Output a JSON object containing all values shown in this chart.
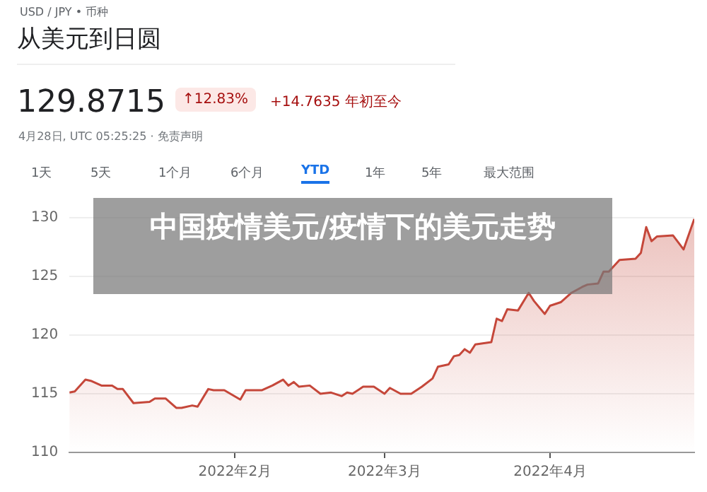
{
  "chart_data": {
    "type": "area",
    "title": "从美元到日圆",
    "subtitle": "USD / JPY • 币种",
    "annotations": [
      "129.8715",
      "↑12.83%",
      "+14.7635 年初至今",
      "4月28日, UTC 05:25:25 · 免责声明",
      "1天",
      "5天",
      "1个月",
      "6个月",
      "YTD",
      "1年",
      "5年",
      "最大范围",
      "中国疫情美元/疫情下的美元走势"
    ],
    "x": [
      "2022-01-01",
      "2022-01-02",
      "2022-01-04",
      "2022-01-05",
      "2022-01-07",
      "2022-01-09",
      "2022-01-10",
      "2022-01-11",
      "2022-01-13",
      "2022-01-16",
      "2022-01-17",
      "2022-01-19",
      "2022-01-21",
      "2022-01-22",
      "2022-01-24",
      "2022-01-25",
      "2022-01-27",
      "2022-01-28",
      "2022-01-30",
      "2022-02-02",
      "2022-02-03",
      "2022-02-06",
      "2022-02-08",
      "2022-02-10",
      "2022-02-11",
      "2022-02-12",
      "2022-02-13",
      "2022-02-15",
      "2022-02-17",
      "2022-02-19",
      "2022-02-21",
      "2022-02-22",
      "2022-02-23",
      "2022-02-25",
      "2022-02-27",
      "2022-03-01",
      "2022-03-02",
      "2022-03-04",
      "2022-03-06",
      "2022-03-08",
      "2022-03-10",
      "2022-03-11",
      "2022-03-13",
      "2022-03-14",
      "2022-03-15",
      "2022-03-16",
      "2022-03-17",
      "2022-03-18",
      "2022-03-21",
      "2022-03-22",
      "2022-03-23",
      "2022-03-24",
      "2022-03-26",
      "2022-03-28",
      "2022-03-29",
      "2022-03-31",
      "2022-04-01",
      "2022-04-03",
      "2022-04-05",
      "2022-04-07",
      "2022-04-08",
      "2022-04-10",
      "2022-04-11",
      "2022-04-12",
      "2022-04-14",
      "2022-04-17",
      "2022-04-18",
      "2022-04-19",
      "2022-04-20",
      "2022-04-21",
      "2022-04-24",
      "2022-04-26",
      "2022-04-28"
    ],
    "series": [
      {
        "color": "#c5473a",
        "values": [
          115.1,
          115.2,
          116.2,
          116.1,
          115.7,
          115.7,
          115.4,
          115.4,
          114.2,
          114.3,
          114.6,
          114.6,
          113.8,
          113.8,
          114.0,
          113.9,
          115.4,
          115.3,
          115.3,
          114.5,
          115.3,
          115.3,
          115.7,
          116.2,
          115.7,
          116.0,
          115.6,
          115.7,
          115.0,
          115.1,
          114.8,
          115.1,
          115.0,
          115.6,
          115.6,
          115.0,
          115.5,
          115.0,
          115.0,
          115.6,
          116.3,
          117.3,
          117.5,
          118.2,
          118.3,
          118.8,
          118.5,
          119.2,
          119.4,
          121.4,
          121.2,
          122.2,
          122.1,
          123.6,
          122.9,
          121.8,
          122.5,
          122.8,
          123.6,
          124.1,
          124.3,
          124.4,
          125.4,
          125.4,
          126.4,
          126.5,
          127.0,
          129.2,
          128.0,
          128.4,
          128.5,
          127.3,
          129.9
        ]
      }
    ],
    "xlim": [
      "2022-01-01",
      "2022-04-28"
    ],
    "xticks": [
      {
        "value": "2022-02-01",
        "label": "2022年2月"
      },
      {
        "value": "2022-03-01",
        "label": "2022年3月"
      },
      {
        "value": "2022-04-01",
        "label": "2022年4月"
      }
    ],
    "ylim": [
      110,
      130
    ],
    "yticks": [
      110,
      115,
      120,
      125,
      130
    ],
    "grid": "y",
    "legend": false
  }
}
